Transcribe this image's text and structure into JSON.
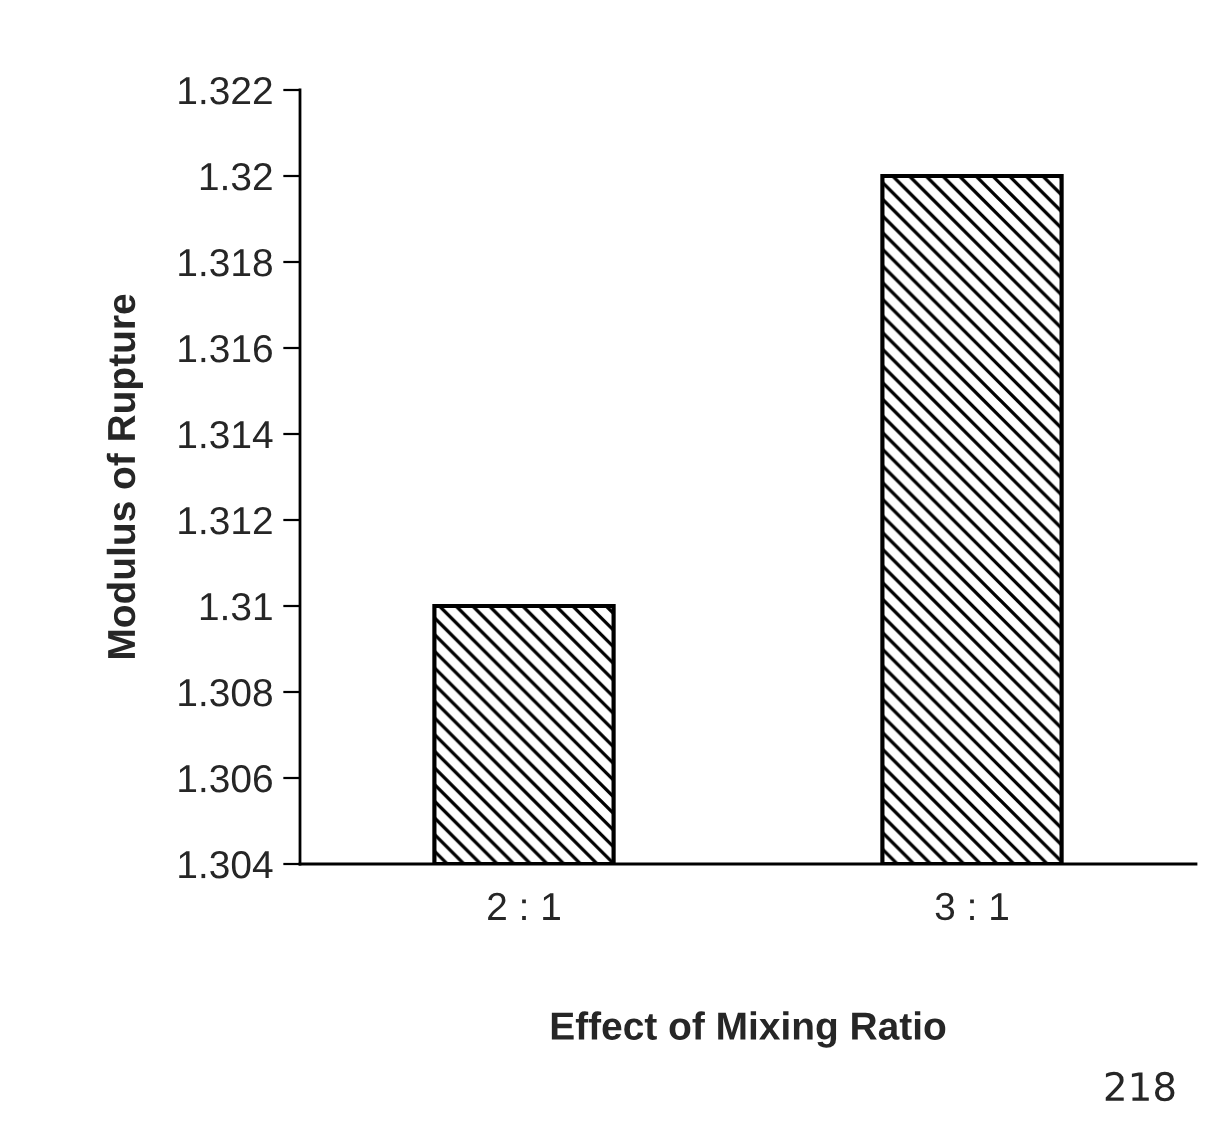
{
  "chart_data": {
    "type": "bar",
    "xlabel": "Effect of Mixing Ratio",
    "ylabel": "Modulus of Rupture",
    "categories": [
      "2 : 1",
      "3 : 1"
    ],
    "values": [
      1.31,
      1.32
    ],
    "color": "#000000",
    "ylim": [
      1.304,
      1.322
    ],
    "yticks": [
      1.304,
      1.306,
      1.308,
      1.31,
      1.312,
      1.314,
      1.316,
      1.318,
      1.32,
      1.322
    ],
    "grid": false,
    "annotations": [
      "218"
    ]
  }
}
